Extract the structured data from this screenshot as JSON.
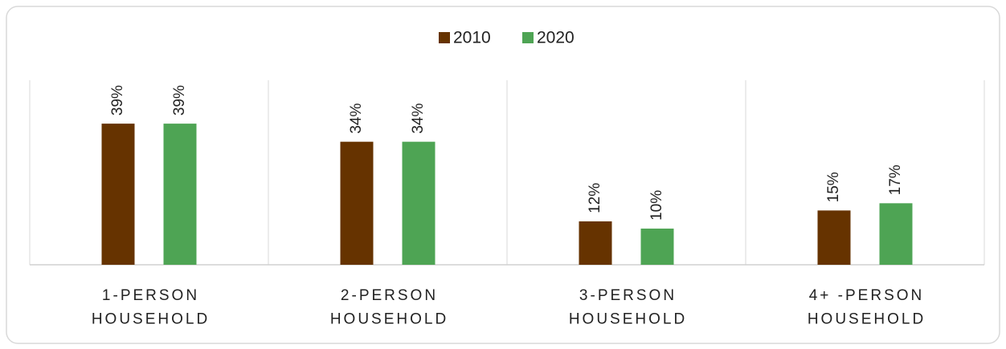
{
  "chart_data": {
    "type": "bar",
    "categories": [
      "1-PERSON\nHOUSEHOLD",
      "2-PERSON\nHOUSEHOLD",
      "3-PERSON\nHOUSEHOLD",
      "4+ -PERSON\nHOUSEHOLD"
    ],
    "series": [
      {
        "name": "2010",
        "color": "#663300",
        "values": [
          39,
          34,
          12,
          15
        ],
        "value_labels": [
          "39%",
          "34%",
          "12%",
          "15%"
        ]
      },
      {
        "name": "2020",
        "color": "#4ea454",
        "values": [
          39,
          34,
          10,
          17
        ],
        "value_labels": [
          "39%",
          "34%",
          "10%",
          "17%"
        ]
      }
    ],
    "legend": "top"
  }
}
